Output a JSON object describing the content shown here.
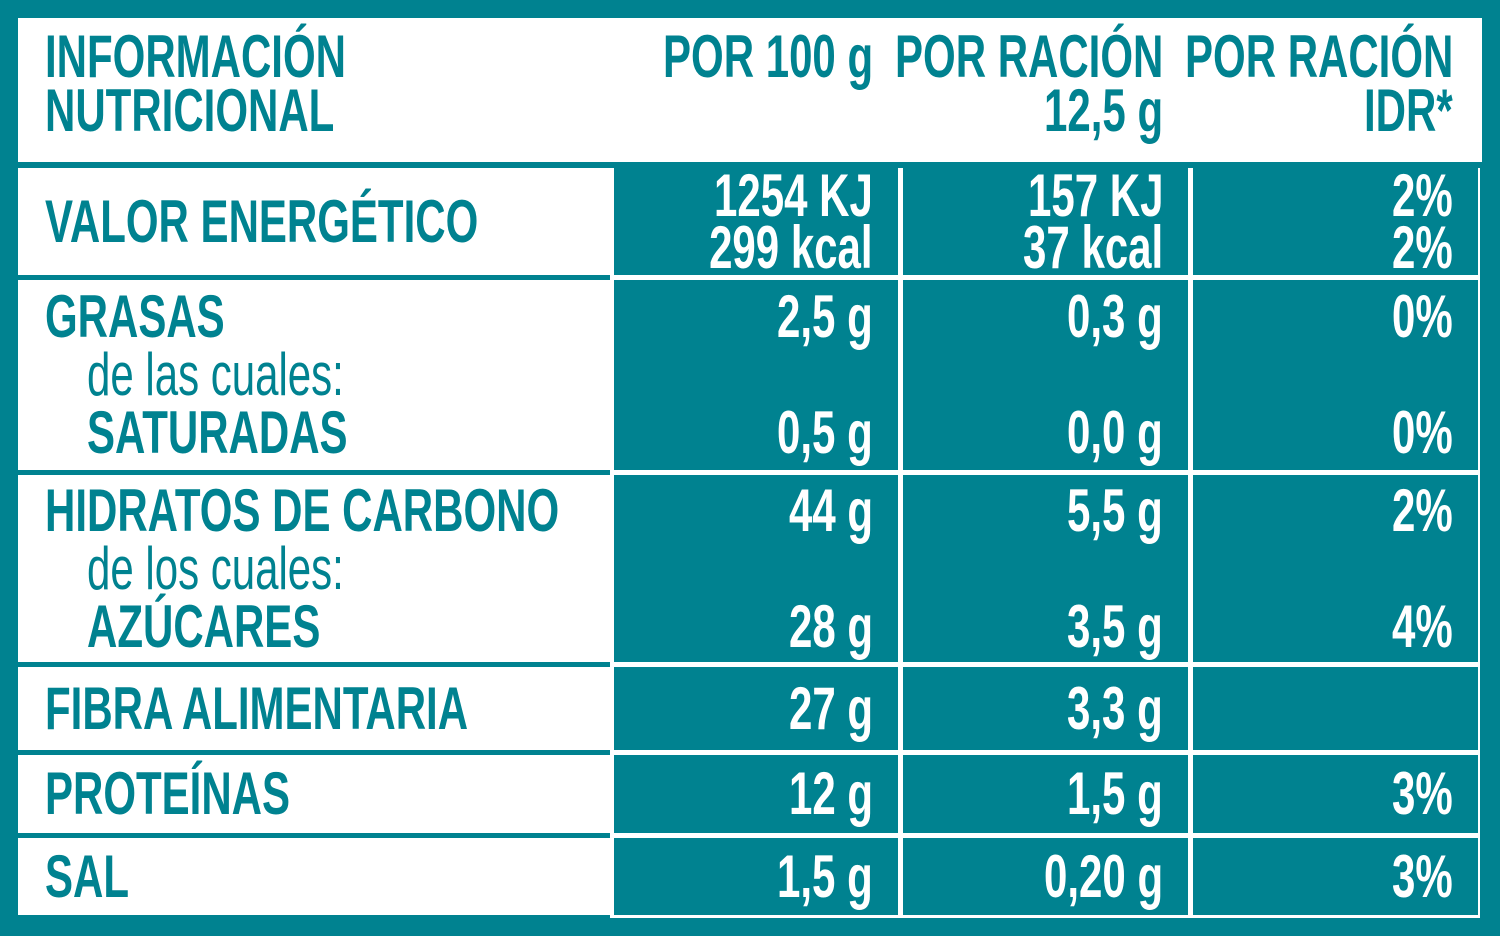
{
  "header": {
    "title": [
      "INFORMACIÓN",
      "NUTRICIONAL"
    ],
    "columns": [
      [
        "POR 100 g"
      ],
      [
        "POR RACIÓN",
        "12,5 g"
      ],
      [
        "POR RACIÓN",
        "IDR*"
      ]
    ]
  },
  "rows": [
    {
      "lines": [
        {
          "label": "VALOR ENERGÉTICO",
          "values": [
            "1254 KJ",
            "157 KJ",
            "2%"
          ]
        },
        {
          "label": null,
          "values": [
            "299 kcal",
            "37 kcal",
            "2%"
          ]
        }
      ]
    },
    {
      "lines": [
        {
          "label": "GRASAS",
          "values": [
            "2,5 g",
            "0,3 g",
            "0%"
          ]
        },
        {
          "label": "de las cuales:",
          "indent": true,
          "values": [
            null,
            null,
            null
          ]
        },
        {
          "label": "SATURADAS",
          "indent": true,
          "values": [
            "0,5 g",
            "0,0 g",
            "0%"
          ]
        }
      ]
    },
    {
      "lines": [
        {
          "label": "HIDRATOS DE CARBONO",
          "values": [
            "44 g",
            "5,5 g",
            "2%"
          ]
        },
        {
          "label": "de los cuales:",
          "indent": true,
          "values": [
            null,
            null,
            null
          ]
        },
        {
          "label": "AZÚCARES",
          "indent": true,
          "values": [
            "28 g",
            "3,5 g",
            "4%"
          ]
        }
      ]
    },
    {
      "lines": [
        {
          "label": "FIBRA ALIMENTARIA",
          "values": [
            "27 g",
            "3,3 g",
            null
          ]
        }
      ]
    },
    {
      "lines": [
        {
          "label": "PROTEÍNAS",
          "values": [
            "12 g",
            "1,5 g",
            "3%"
          ]
        }
      ]
    },
    {
      "lines": [
        {
          "label": "SAL",
          "values": [
            "1,5 g",
            "0,20 g",
            "3%"
          ]
        }
      ]
    }
  ]
}
